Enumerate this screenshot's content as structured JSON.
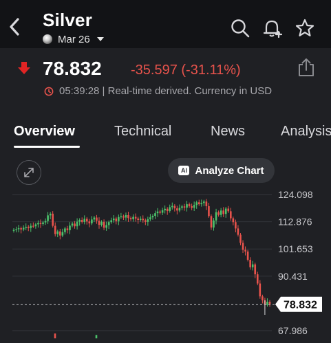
{
  "header": {
    "title": "Silver",
    "contract": "Mar 26"
  },
  "quote": {
    "price": "78.832",
    "change": "-35.597 (-31.11%)",
    "meta": "05:39:28 | Real-time derived. Currency in USD",
    "colors": {
      "down": "#e8534c",
      "up": "#4cc36b"
    }
  },
  "tabs": [
    {
      "label": "Overview"
    },
    {
      "label": "Technical"
    },
    {
      "label": "News"
    },
    {
      "label": "Analysis"
    }
  ],
  "toolbar": {
    "analyze_label": "Analyze Chart",
    "ai_badge": "AI"
  },
  "chart_data": {
    "type": "candlestick",
    "y_ticks": [
      "124.098",
      "112.876",
      "101.653",
      "90.431",
      "67.986"
    ],
    "last_price_label": "78.832",
    "last_price": 78.832,
    "ylim": [
      66,
      126
    ],
    "series": [
      {
        "values": [
          109.5,
          109.8,
          110.2,
          109.7,
          110.4,
          110.8,
          110.3,
          111.2,
          111.0,
          111.8,
          112.4,
          111.9,
          112.6,
          113.2,
          115.5,
          116.2,
          111.2,
          107.8,
          108.9,
          107.2,
          108.6,
          110.1,
          109.4,
          111.3,
          112.1,
          111.0,
          112.9,
          113.6,
          112.8,
          114.1,
          113.0,
          112.2,
          113.8,
          114.6,
          113.3,
          111.6,
          112.8,
          110.4,
          111.5,
          112.7,
          113.5,
          114.2,
          113.1,
          114.8,
          115.1,
          114.6,
          115.6,
          114.4,
          113.9,
          114.9,
          114.2,
          113.6,
          114.1,
          113.5,
          112.8,
          113.9,
          114.7,
          115.3,
          116.4,
          117.1,
          116.6,
          117.6,
          118.2,
          117.3,
          118.9,
          119.4,
          118.4,
          117.5,
          118.6,
          119.2,
          118.7,
          120.1,
          119.3,
          118.6,
          119.8,
          120.9,
          120.1,
          120.6,
          121.2,
          119.3,
          115.2,
          110.5,
          113.4,
          116.8,
          115.7,
          117.5,
          116.1,
          118.3,
          117.2,
          114.3,
          112.7,
          110.1,
          107.5,
          104.2,
          101.3,
          100.6,
          97.2,
          94.1,
          95.3,
          91.2,
          87.4,
          82.1,
          80.5,
          78.6,
          79.9,
          78.832
        ]
      }
    ]
  }
}
